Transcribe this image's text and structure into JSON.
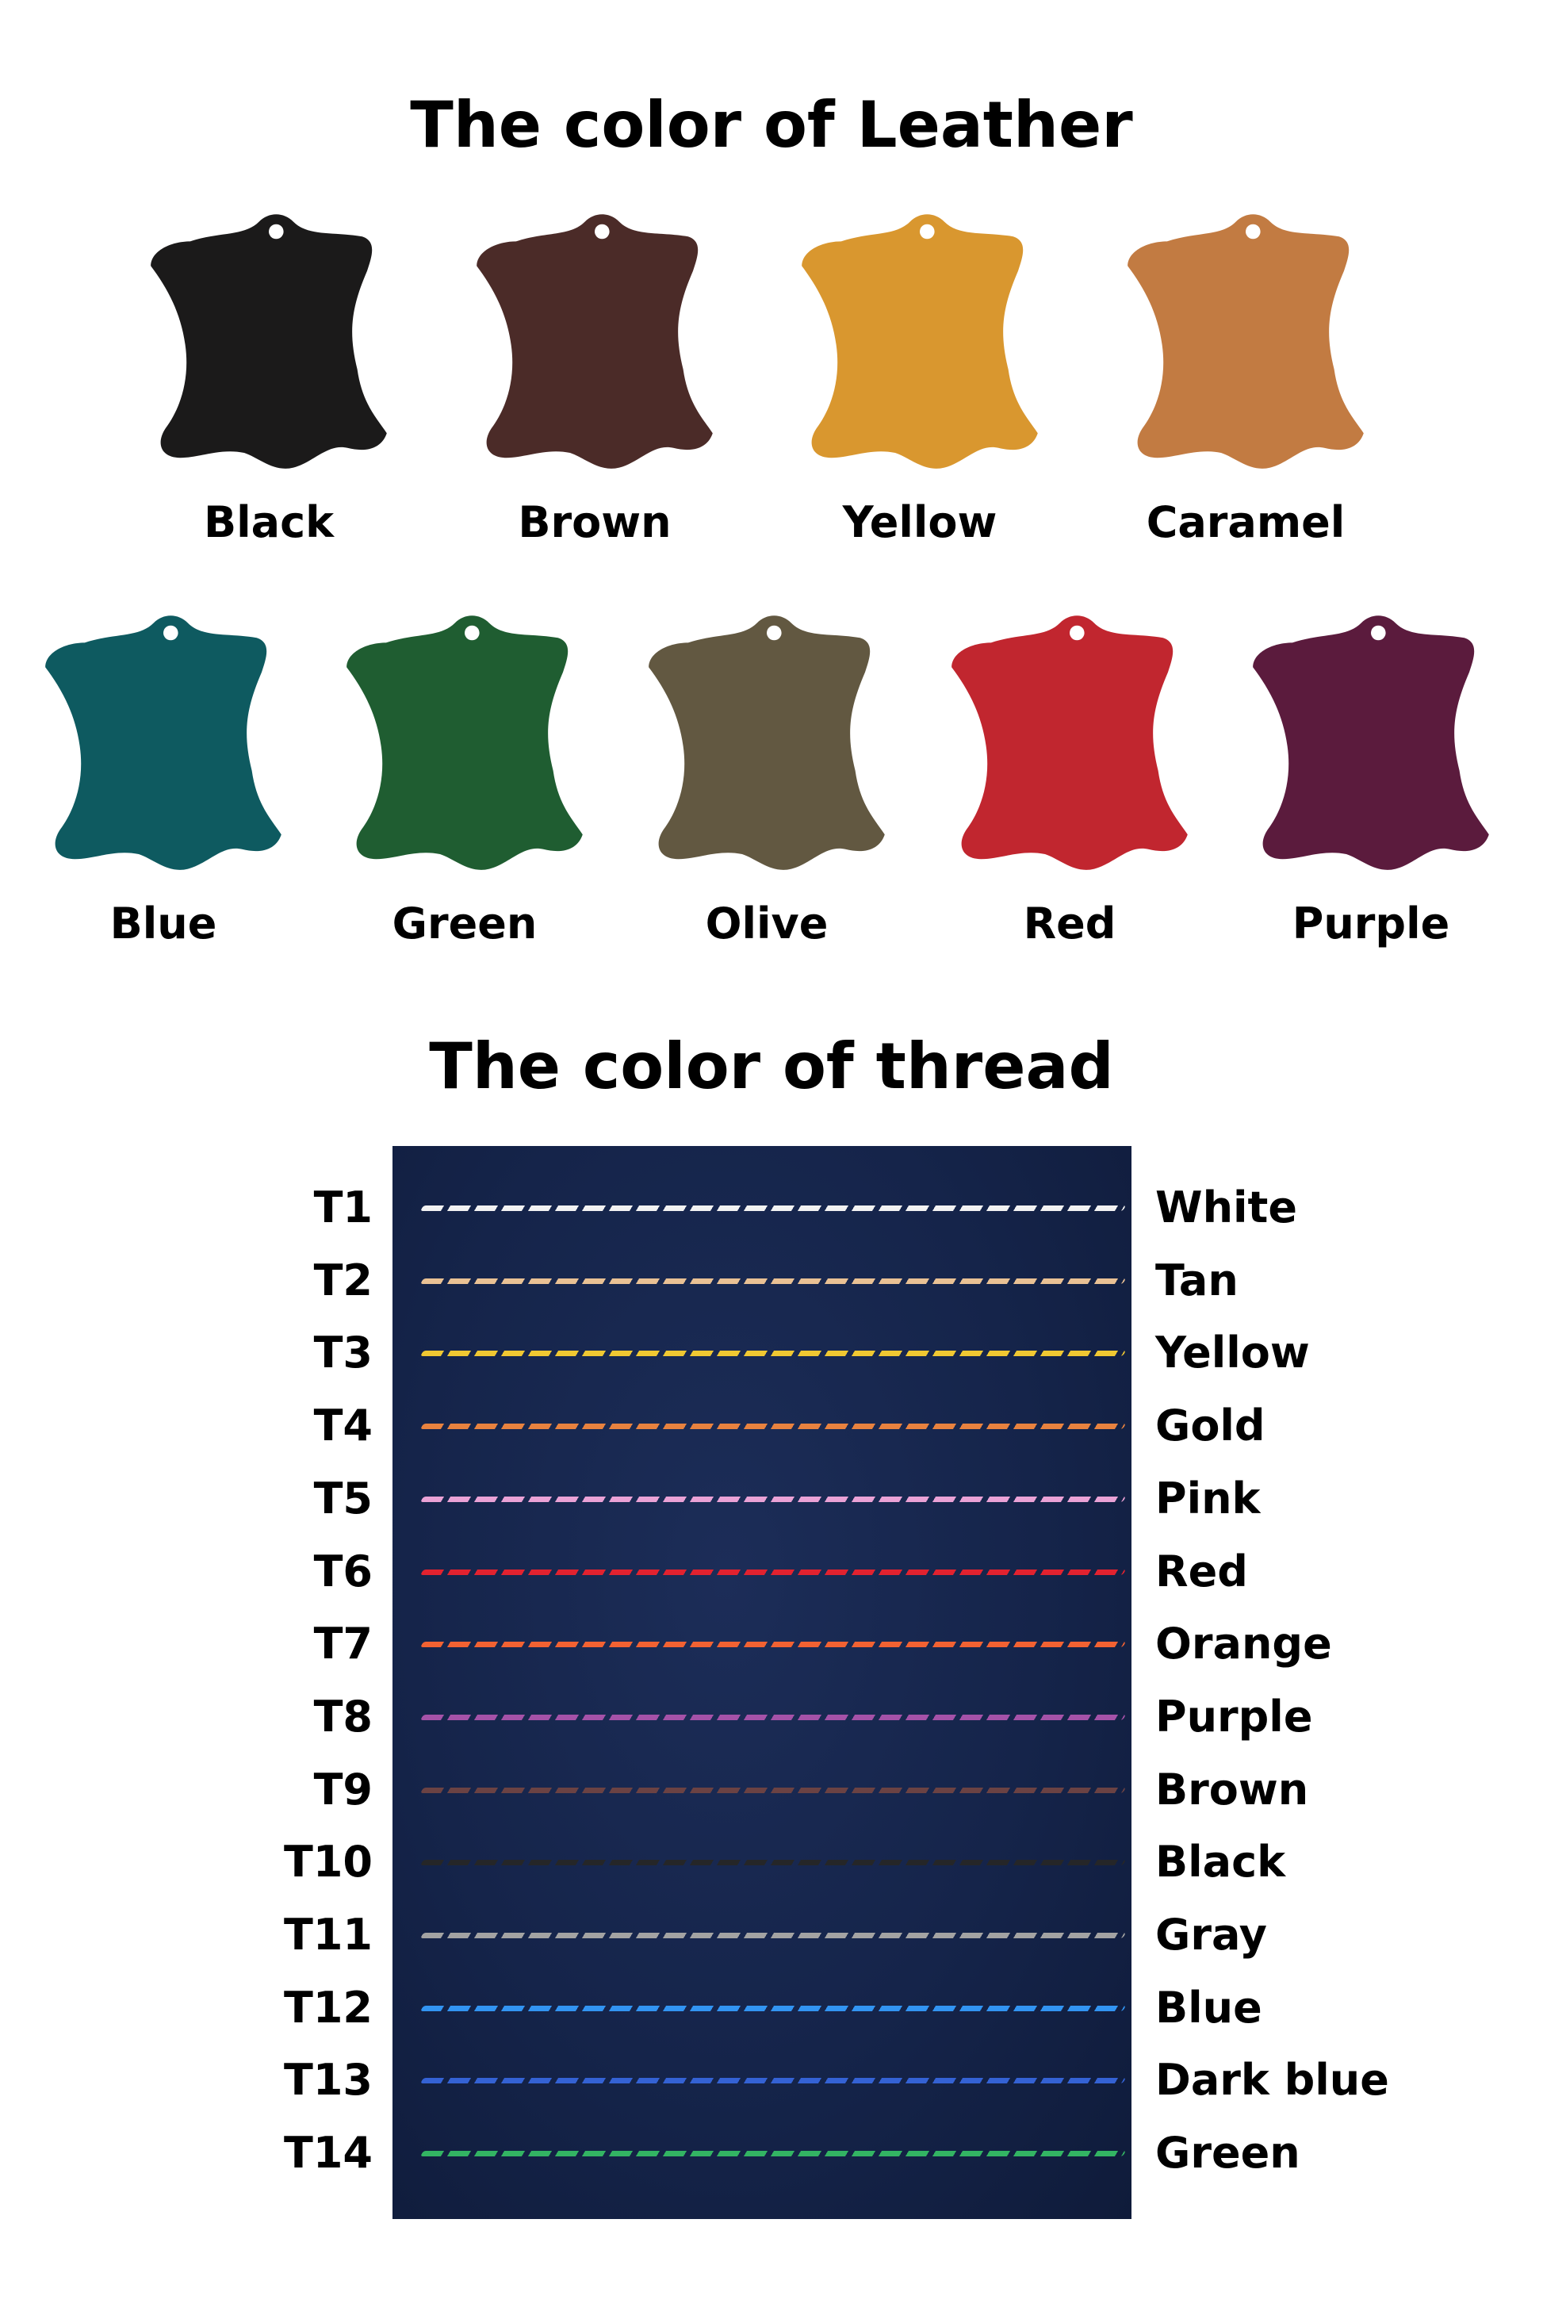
{
  "leather": {
    "title": "The color of Leather",
    "items": [
      {
        "label": "Black",
        "color": "#1b1a1a"
      },
      {
        "label": "Brown",
        "color": "#4b2b28"
      },
      {
        "label": "Yellow",
        "color": "#d9972f"
      },
      {
        "label": "Caramel",
        "color": "#c27b42"
      },
      {
        "label": "Blue",
        "color": "#0e5a60"
      },
      {
        "label": "Green",
        "color": "#1f5d31"
      },
      {
        "label": "Olive",
        "color": "#625841"
      },
      {
        "label": "Red",
        "color": "#c1262f"
      },
      {
        "label": "Purple",
        "color": "#5b1b3d"
      }
    ]
  },
  "thread": {
    "title": "The color of thread",
    "items": [
      {
        "code": "T1",
        "label": "White",
        "color": "#f2f2f2"
      },
      {
        "code": "T2",
        "label": "Tan",
        "color": "#e9c194"
      },
      {
        "code": "T3",
        "label": "Yellow",
        "color": "#f0c832"
      },
      {
        "code": "T4",
        "label": "Gold",
        "color": "#e8823f"
      },
      {
        "code": "T5",
        "label": "Pink",
        "color": "#eaa2d6"
      },
      {
        "code": "T6",
        "label": "Red",
        "color": "#e2222f"
      },
      {
        "code": "T7",
        "label": "Orange",
        "color": "#f26232"
      },
      {
        "code": "T8",
        "label": "Purple",
        "color": "#a552a8"
      },
      {
        "code": "T9",
        "label": "Brown",
        "color": "#6b4243"
      },
      {
        "code": "T10",
        "label": "Black",
        "color": "#252628"
      },
      {
        "code": "T11",
        "label": "Gray",
        "color": "#a3a3a3"
      },
      {
        "code": "T12",
        "label": "Blue",
        "color": "#3294f2"
      },
      {
        "code": "T13",
        "label": "Dark blue",
        "color": "#3462d4"
      },
      {
        "code": "T14",
        "label": "Green",
        "color": "#33b463"
      }
    ]
  }
}
